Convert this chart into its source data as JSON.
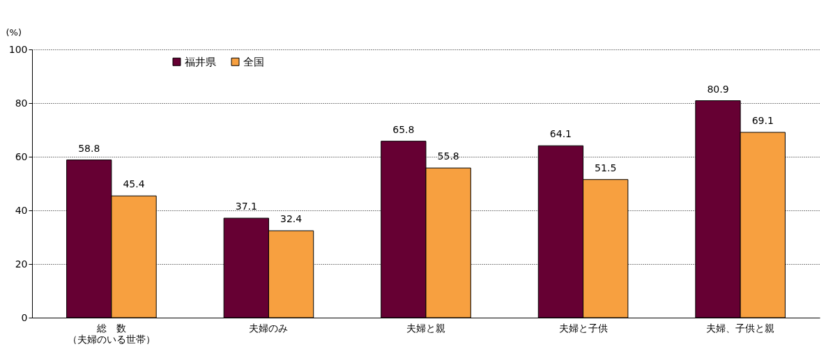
{
  "chart_data": {
    "type": "bar",
    "ylabel": "(%)",
    "categories": [
      "総　数（夫婦のいる世帯）",
      "夫婦のみ",
      "夫婦と親",
      "夫婦と子供",
      "夫婦、子供と親"
    ],
    "series": [
      {
        "name": "福井県",
        "color": "#660033",
        "values": [
          58.8,
          37.1,
          65.8,
          64.1,
          80.9
        ]
      },
      {
        "name": "全国",
        "color": "#f7a040",
        "values": [
          45.4,
          32.4,
          55.8,
          51.5,
          69.1
        ]
      }
    ],
    "ylim": [
      0,
      100
    ],
    "yticks": [
      0,
      20,
      40,
      60,
      80,
      100
    ],
    "grid": "y",
    "legend": "top left",
    "data_labels": true
  }
}
